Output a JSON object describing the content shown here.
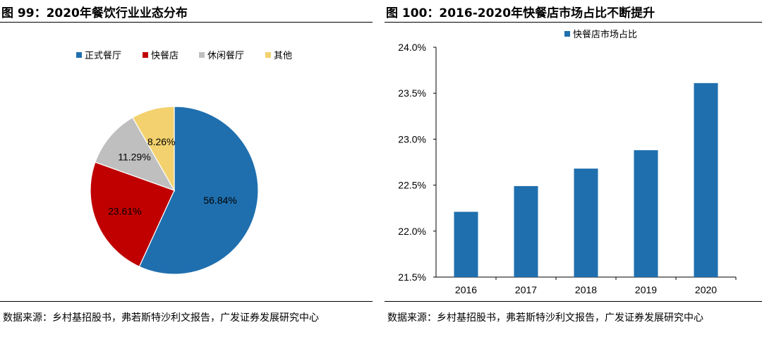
{
  "left": {
    "title": "图 99：2020年餐饮行业业态分布",
    "source": "数据来源：乡村基招股书，弗若斯特沙利文报告，广发证券发展研究中心"
  },
  "right": {
    "title": "图 100：2016-2020年快餐店市场占比不断提升",
    "source": "数据来源：乡村基招股书，弗若斯特沙利文报告，广发证券发展研究中心"
  },
  "chart_data": [
    {
      "type": "pie",
      "title": "",
      "legend_position": "top",
      "series": [
        {
          "name": "正式餐厅",
          "value": 56.84,
          "label": "56.84%",
          "color": "#1f6fae"
        },
        {
          "name": "快餐店",
          "value": 23.61,
          "label": "23.61%",
          "color": "#c00000"
        },
        {
          "name": "休闲餐厅",
          "value": 11.29,
          "label": "11.29%",
          "color": "#bfbfbf"
        },
        {
          "name": "其他",
          "value": 8.26,
          "label": "8.26%",
          "color": "#f2d16e"
        }
      ]
    },
    {
      "type": "bar",
      "title": "",
      "legend_position": "top",
      "categories": [
        "2016",
        "2017",
        "2018",
        "2019",
        "2020"
      ],
      "series": [
        {
          "name": "快餐店市场占比",
          "values": [
            22.21,
            22.49,
            22.68,
            22.88,
            23.61
          ],
          "color": "#1f6fae"
        }
      ],
      "ylim": [
        21.5,
        24.0
      ],
      "yticks": [
        "21.5%",
        "22.0%",
        "22.5%",
        "23.0%",
        "23.5%",
        "24.0%"
      ],
      "grid": false
    }
  ]
}
